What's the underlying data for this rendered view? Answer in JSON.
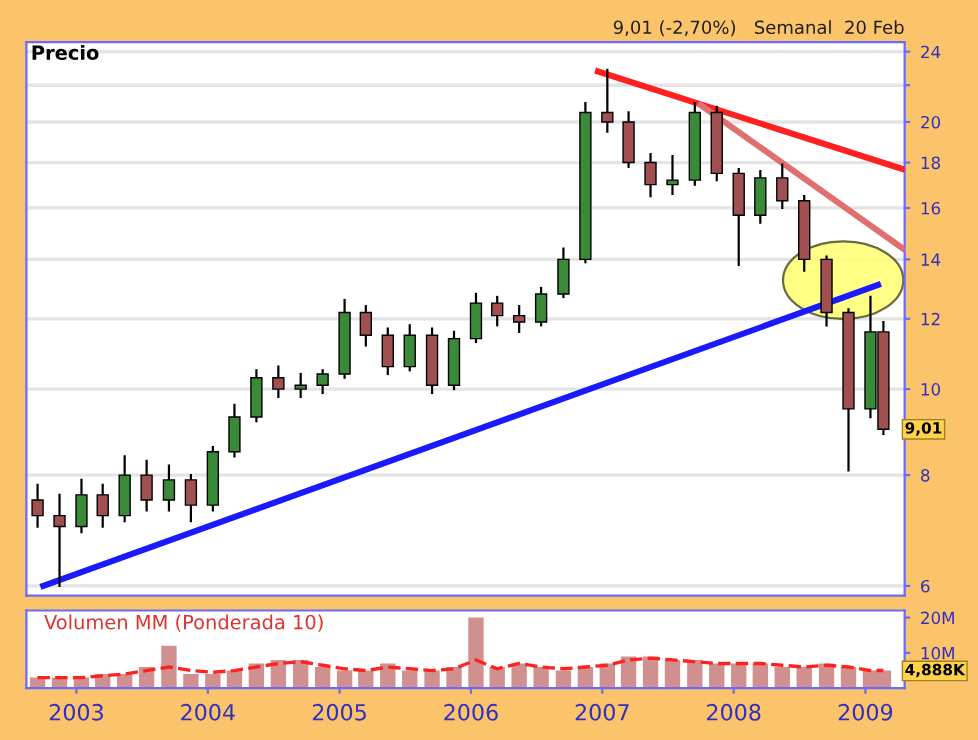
{
  "chart_data": [
    {
      "type": "candlestick",
      "title": "9,01 (-2,70%)   Semanal  20 Feb",
      "annotations": [
        "Precio",
        {
          "text": "9,01",
          "x": "2009-02-20",
          "y": 9.01
        }
      ],
      "x": [
        "2002-09-15",
        "2002-11-15",
        "2003-01-15",
        "2003-03-15",
        "2003-05-15",
        "2003-07-15",
        "2003-09-15",
        "2003-11-15",
        "2004-01-15",
        "2004-03-15",
        "2004-05-15",
        "2004-07-15",
        "2004-09-15",
        "2004-11-15",
        "2005-01-15",
        "2005-03-15",
        "2005-05-15",
        "2005-07-15",
        "2005-09-15",
        "2005-11-15",
        "2006-01-15",
        "2006-03-15",
        "2006-05-15",
        "2006-07-15",
        "2006-09-15",
        "2006-11-15",
        "2007-01-15",
        "2007-03-15",
        "2007-05-15",
        "2007-07-15",
        "2007-09-15",
        "2007-11-15",
        "2008-01-15",
        "2008-03-15",
        "2008-05-15",
        "2008-07-15",
        "2008-09-15",
        "2008-11-15",
        "2009-01-15",
        "2009-02-20"
      ],
      "ohlc": [
        [
          7.5,
          7.8,
          7.0,
          7.2
        ],
        [
          7.2,
          7.6,
          6.0,
          7.0
        ],
        [
          7.0,
          7.9,
          6.9,
          7.6
        ],
        [
          7.6,
          7.8,
          7.0,
          7.2
        ],
        [
          7.2,
          8.4,
          7.1,
          8.0
        ],
        [
          8.0,
          8.3,
          7.3,
          7.5
        ],
        [
          7.5,
          8.2,
          7.3,
          7.9
        ],
        [
          7.9,
          8.0,
          7.1,
          7.4
        ],
        [
          7.4,
          8.6,
          7.3,
          8.5
        ],
        [
          8.5,
          9.6,
          8.4,
          9.3
        ],
        [
          9.3,
          10.5,
          9.2,
          10.3
        ],
        [
          10.3,
          10.6,
          9.8,
          10.0
        ],
        [
          10.0,
          10.4,
          9.8,
          10.1
        ],
        [
          10.1,
          10.5,
          9.9,
          10.4
        ],
        [
          10.4,
          12.6,
          10.3,
          12.2
        ],
        [
          12.2,
          12.4,
          11.2,
          11.5
        ],
        [
          11.5,
          11.7,
          10.4,
          10.6
        ],
        [
          10.6,
          11.8,
          10.5,
          11.5
        ],
        [
          11.5,
          11.7,
          9.9,
          10.1
        ],
        [
          10.1,
          11.6,
          10.0,
          11.4
        ],
        [
          11.4,
          12.8,
          11.3,
          12.5
        ],
        [
          12.5,
          12.7,
          11.8,
          12.1
        ],
        [
          12.1,
          12.4,
          11.6,
          11.9
        ],
        [
          11.9,
          13.0,
          11.8,
          12.8
        ],
        [
          12.8,
          14.4,
          12.7,
          14.0
        ],
        [
          14.0,
          21.0,
          13.9,
          20.5
        ],
        [
          20.5,
          22.9,
          19.5,
          20.0
        ],
        [
          20.0,
          20.5,
          17.8,
          18.0
        ],
        [
          18.0,
          18.4,
          16.5,
          17.0
        ],
        [
          17.0,
          18.3,
          16.6,
          17.2
        ],
        [
          17.2,
          21.0,
          17.0,
          20.5
        ],
        [
          20.5,
          20.8,
          17.2,
          17.5
        ],
        [
          17.5,
          17.7,
          13.8,
          15.7
        ],
        [
          15.7,
          17.6,
          15.4,
          17.3
        ],
        [
          17.3,
          17.9,
          16.0,
          16.3
        ],
        [
          16.3,
          16.5,
          13.6,
          14.0
        ],
        [
          14.0,
          14.1,
          11.8,
          12.2
        ],
        [
          12.2,
          12.3,
          8.1,
          9.5
        ],
        [
          9.5,
          12.7,
          9.3,
          11.6
        ],
        [
          11.6,
          11.9,
          8.9,
          9.01
        ]
      ],
      "colors": [
        "#a05050",
        "#a05050",
        "#3a8a3a",
        "#a05050",
        "#3a8a3a",
        "#a05050",
        "#3a8a3a",
        "#a05050",
        "#3a8a3a",
        "#3a8a3a",
        "#3a8a3a",
        "#a05050",
        "#3a8a3a",
        "#3a8a3a",
        "#3a8a3a",
        "#a05050",
        "#a05050",
        "#3a8a3a",
        "#a05050",
        "#3a8a3a",
        "#3a8a3a",
        "#a05050",
        "#a05050",
        "#3a8a3a",
        "#3a8a3a",
        "#3a8a3a",
        "#a05050",
        "#a05050",
        "#a05050",
        "#3a8a3a",
        "#3a8a3a",
        "#a05050",
        "#a05050",
        "#3a8a3a",
        "#a05050",
        "#a05050",
        "#a05050",
        "#a05050",
        "#3a8a3a",
        "#a05050"
      ],
      "series": [
        {
          "type": "line",
          "color": "#ff2020",
          "x": [
            "2006-12-20",
            "2009-04-15"
          ],
          "values": [
            22.8,
            17.7
          ]
        },
        {
          "type": "line",
          "color": "#e07070",
          "x": [
            "2007-10-01",
            "2009-04-15"
          ],
          "values": [
            20.9,
            14.4
          ]
        },
        {
          "type": "line",
          "color": "#1a1aff",
          "x": [
            "2002-10-01",
            "2009-02-05"
          ],
          "values": [
            6.0,
            13.1
          ]
        }
      ],
      "log": "y",
      "grid": "y",
      "tick_labels": "y",
      "xlim": [
        "2002-08-15",
        "2009-04-20"
      ],
      "ylim": [
        5.85,
        24.6
      ],
      "yticks": [
        6,
        8,
        10,
        12,
        14,
        16,
        18,
        20,
        {
          "value": 22,
          "label": null
        },
        24
      ]
    },
    {
      "type": "bar",
      "title": "Volumen MM (Ponderada 10)",
      "annotations": [
        {
          "text": "4,888K",
          "x": "2009-02-20",
          "y": 4.888
        }
      ],
      "x": [
        "2002-09-15",
        "2002-11-15",
        "2003-01-15",
        "2003-03-15",
        "2003-05-15",
        "2003-07-15",
        "2003-09-15",
        "2003-11-15",
        "2004-01-15",
        "2004-03-15",
        "2004-05-15",
        "2004-07-15",
        "2004-09-15",
        "2004-11-15",
        "2005-01-15",
        "2005-03-15",
        "2005-05-15",
        "2005-07-15",
        "2005-09-15",
        "2005-11-15",
        "2006-01-15",
        "2006-03-15",
        "2006-05-15",
        "2006-07-15",
        "2006-09-15",
        "2006-11-15",
        "2007-01-15",
        "2007-03-15",
        "2007-05-15",
        "2007-07-15",
        "2007-09-15",
        "2007-11-15",
        "2008-01-15",
        "2008-03-15",
        "2008-05-15",
        "2008-07-15",
        "2008-09-15",
        "2008-11-15",
        "2009-01-15",
        "2009-02-20"
      ],
      "series": [
        {
          "type": "bar",
          "color": "#d09090",
          "values": [
            3,
            3,
            3,
            4,
            4,
            6,
            12,
            4,
            4,
            5,
            7,
            8,
            8,
            6,
            5,
            5,
            7,
            5,
            5,
            6,
            20,
            6,
            7,
            6,
            5,
            6,
            7,
            9,
            9,
            8,
            8,
            7,
            7,
            7,
            6,
            6,
            7,
            6,
            5,
            5
          ]
        },
        {
          "type": "line",
          "color": "#ff2020",
          "line_style": "dashed",
          "values": [
            3,
            3,
            3,
            3.5,
            4,
            5,
            6,
            5,
            4.5,
            5,
            6,
            7,
            7.5,
            6.5,
            5.5,
            5,
            6,
            5.5,
            5,
            5.5,
            8,
            5.5,
            7,
            6,
            5.5,
            6,
            6.5,
            8,
            8.5,
            8,
            7.5,
            7,
            7,
            7,
            6.5,
            6,
            6.5,
            6,
            5,
            5
          ]
        }
      ],
      "xlim": [
        "2002-08-15",
        "2009-04-20"
      ],
      "ylim": [
        0,
        22
      ],
      "xticks": [
        {
          "value": "2003-01-01",
          "label": "2003"
        },
        {
          "value": "2004-01-01",
          "label": "2004"
        },
        {
          "value": "2005-01-01",
          "label": "2005"
        },
        {
          "value": "2006-01-01",
          "label": "2006"
        },
        {
          "value": "2007-01-01",
          "label": "2007"
        },
        {
          "value": "2008-01-01",
          "label": "2008"
        },
        {
          "value": "2009-01-01",
          "label": "2009"
        }
      ],
      "yticks": [
        {
          "value": 10,
          "label": "10M"
        },
        {
          "value": 20,
          "label": "20M"
        }
      ]
    }
  ]
}
